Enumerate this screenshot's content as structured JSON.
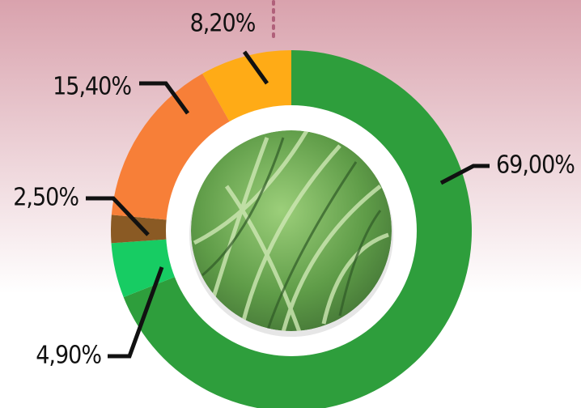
{
  "chart_data": {
    "type": "donut",
    "values": [
      69,
      4.9,
      2.5,
      15.4,
      8.2
    ],
    "value_labels": [
      "69,00%",
      "4,90%",
      "2,50%",
      "15,40%",
      "8,20%"
    ],
    "colors": [
      "#2e9e3c",
      "#17cc63",
      "#8a5a24",
      "#f77f38",
      "#ffab16"
    ]
  }
}
